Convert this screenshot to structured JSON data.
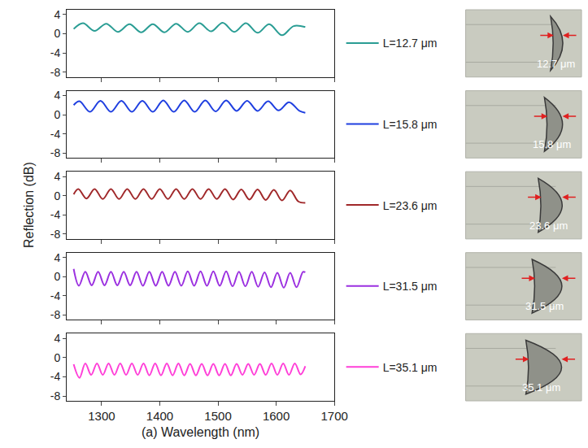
{
  "chart_data": {
    "type": "line",
    "x_label": "(a) Wavelength (nm)",
    "y_label": "Reflection (dB)",
    "xlim": [
      1240,
      1700
    ],
    "xticks": [
      1300,
      1400,
      1500,
      1600,
      1700
    ],
    "ylim": [
      -9,
      5
    ],
    "yticks": [
      -8,
      -4,
      0,
      4
    ],
    "grid": false,
    "legend": "right",
    "line_style": "solid",
    "series": [
      {
        "name": "L=12.7 μm",
        "color": "#2a9d94",
        "x": [
          1252,
          1268,
          1288,
          1308,
          1328,
          1348,
          1368,
          1388,
          1408,
          1428,
          1448,
          1468,
          1488,
          1508,
          1528,
          1548,
          1568,
          1588,
          1610,
          1630,
          1650
        ],
        "values": [
          1.0,
          2.2,
          0.6,
          2.1,
          0.4,
          2.0,
          0.3,
          2.0,
          0.3,
          2.1,
          0.4,
          2.2,
          0.5,
          2.3,
          0.4,
          2.2,
          0.2,
          2.0,
          -0.3,
          1.6,
          1.4
        ]
      },
      {
        "name": "L=15.8 μm",
        "color": "#1f3fe0",
        "x": [
          1252,
          1262,
          1280,
          1298,
          1316,
          1334,
          1352,
          1370,
          1388,
          1406,
          1424,
          1442,
          1460,
          1478,
          1496,
          1514,
          1532,
          1550,
          1568,
          1586,
          1604,
          1622,
          1640,
          1650
        ],
        "values": [
          2.0,
          2.8,
          0.6,
          2.9,
          0.6,
          2.9,
          0.6,
          2.9,
          0.6,
          3.0,
          0.6,
          3.0,
          0.6,
          3.0,
          0.7,
          3.0,
          0.8,
          2.9,
          0.8,
          2.8,
          0.9,
          2.6,
          0.8,
          0.4
        ]
      },
      {
        "name": "L=23.6 μm",
        "color": "#a0282a",
        "x": [
          1252,
          1260,
          1274,
          1288,
          1302,
          1316,
          1330,
          1344,
          1358,
          1372,
          1386,
          1400,
          1414,
          1428,
          1442,
          1456,
          1470,
          1484,
          1498,
          1512,
          1526,
          1540,
          1554,
          1568,
          1582,
          1596,
          1610,
          1624,
          1638,
          1650
        ],
        "values": [
          0.3,
          1.4,
          -0.6,
          1.4,
          -0.7,
          1.4,
          -0.7,
          1.4,
          -0.7,
          1.4,
          -0.7,
          1.4,
          -0.7,
          1.4,
          -0.7,
          1.4,
          -0.7,
          1.4,
          -0.7,
          1.4,
          -0.8,
          1.3,
          -0.8,
          1.3,
          -0.9,
          1.2,
          -1.0,
          1.1,
          -1.2,
          -1.5
        ]
      },
      {
        "name": "L=31.5 μm",
        "color": "#9b30e0",
        "x": [
          1252,
          1261,
          1272,
          1283,
          1294,
          1305,
          1316,
          1327,
          1338,
          1349,
          1360,
          1371,
          1382,
          1393,
          1404,
          1415,
          1426,
          1437,
          1448,
          1459,
          1470,
          1481,
          1492,
          1503,
          1514,
          1525,
          1536,
          1547,
          1558,
          1569,
          1580,
          1591,
          1602,
          1613,
          1624,
          1635,
          1646,
          1650
        ],
        "values": [
          1.6,
          -1.9,
          1.0,
          -1.8,
          1.0,
          -1.8,
          1.0,
          -1.8,
          1.0,
          -1.8,
          1.0,
          -1.9,
          1.0,
          -1.9,
          1.0,
          -1.9,
          1.0,
          -1.9,
          1.1,
          -1.9,
          1.1,
          -1.9,
          1.1,
          -1.9,
          1.1,
          -2.0,
          1.0,
          -2.0,
          1.0,
          -2.1,
          0.9,
          -2.2,
          0.8,
          -2.3,
          0.8,
          -2.2,
          1.0,
          0.9
        ]
      },
      {
        "name": "L=35.1 μm",
        "color": "#ff3fd8",
        "x": [
          1252,
          1262,
          1272,
          1282,
          1292,
          1302,
          1312,
          1322,
          1332,
          1342,
          1352,
          1362,
          1372,
          1382,
          1392,
          1402,
          1412,
          1422,
          1432,
          1442,
          1452,
          1462,
          1472,
          1482,
          1492,
          1502,
          1512,
          1522,
          1532,
          1542,
          1552,
          1562,
          1572,
          1582,
          1592,
          1602,
          1612,
          1622,
          1632,
          1642,
          1650
        ],
        "values": [
          -1.4,
          -4.2,
          -1.2,
          -3.6,
          -1.2,
          -3.6,
          -1.2,
          -3.6,
          -1.2,
          -3.6,
          -1.2,
          -3.6,
          -1.2,
          -3.7,
          -1.2,
          -3.7,
          -1.2,
          -3.7,
          -1.2,
          -3.7,
          -1.3,
          -3.7,
          -1.3,
          -3.7,
          -1.3,
          -3.7,
          -1.3,
          -3.7,
          -1.3,
          -3.6,
          -1.3,
          -3.6,
          -1.3,
          -3.6,
          -1.2,
          -3.6,
          -1.2,
          -3.6,
          -1.2,
          -3.5,
          -1.8
        ]
      }
    ],
    "annotations": [
      "12.7 μm",
      "15.8 μm",
      "23.6 μm",
      "31.5 μm",
      "35.1 μm"
    ]
  }
}
